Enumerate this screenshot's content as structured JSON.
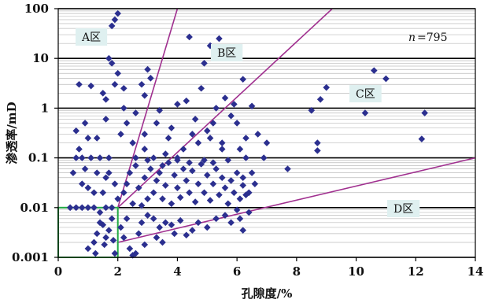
{
  "chart_data": {
    "type": "scatter",
    "title": "",
    "xlabel": "孔隙度/%",
    "ylabel": "渗透率/mD",
    "xlim": [
      0,
      14
    ],
    "ylim": [
      0.001,
      100
    ],
    "yscale": "log",
    "x_ticks": [
      "0",
      "2",
      "4",
      "6",
      "8",
      "10",
      "12",
      "14"
    ],
    "y_ticks": [
      "0.001",
      "0.01",
      "0.1",
      "1",
      "10",
      "100"
    ],
    "grid": "horizontal minor and major lines",
    "colors": {
      "marker": "#2b2f8f",
      "zone_lines": "#a0308f",
      "box": "#22aa44",
      "label_bg": "#dff0f0",
      "major_grid": "#000000",
      "minor_grid": "#bbbbbb"
    },
    "annotations": {
      "count": "=795",
      "count_symbol": "n",
      "zone_a": "A区",
      "zone_b": "B区",
      "zone_c": "C区",
      "zone_d": "D区"
    },
    "zone_lines": [
      {
        "x1": 2,
        "y1": 0.01,
        "x2": 4.0,
        "y2": 100
      },
      {
        "x1": 2,
        "y1": 0.01,
        "x2": 9.2,
        "y2": 100
      },
      {
        "x1": 2,
        "y1": 0.002,
        "x2": 14,
        "y2": 0.1
      }
    ],
    "cutoff_box": {
      "x": [
        0,
        2
      ],
      "y": [
        0.001,
        0.01
      ]
    },
    "points": [
      [
        2.0,
        80
      ],
      [
        1.9,
        60
      ],
      [
        1.8,
        45
      ],
      [
        1.7,
        10
      ],
      [
        1.8,
        8
      ],
      [
        1.9,
        3
      ],
      [
        2.0,
        5
      ],
      [
        1.6,
        1.5
      ],
      [
        2.2,
        1.0
      ],
      [
        2.2,
        2.5
      ],
      [
        2.8,
        3.0
      ],
      [
        3.0,
        6.0
      ],
      [
        3.1,
        4.0
      ],
      [
        2.9,
        1.8
      ],
      [
        3.3,
        0.5
      ],
      [
        4.4,
        27
      ],
      [
        5.4,
        25
      ],
      [
        5.1,
        18
      ],
      [
        4.9,
        8
      ],
      [
        6.2,
        3.8
      ],
      [
        4.3,
        1.4
      ],
      [
        4.0,
        1.2
      ],
      [
        0.7,
        3.0
      ],
      [
        1.1,
        2.8
      ],
      [
        1.5,
        2.0
      ],
      [
        1.6,
        0.6
      ],
      [
        0.6,
        0.35
      ],
      [
        0.9,
        0.5
      ],
      [
        1.0,
        0.25
      ],
      [
        1.3,
        0.25
      ],
      [
        0.7,
        0.15
      ],
      [
        0.6,
        0.1
      ],
      [
        0.8,
        0.1
      ],
      [
        1.1,
        0.1
      ],
      [
        1.4,
        0.1
      ],
      [
        1.7,
        0.1
      ],
      [
        2.5,
        0.2
      ],
      [
        2.9,
        0.15
      ],
      [
        2.6,
        0.1
      ],
      [
        3.2,
        0.1
      ],
      [
        3.6,
        0.12
      ],
      [
        4.0,
        0.1
      ],
      [
        4.2,
        0.15
      ],
      [
        4.5,
        0.3
      ],
      [
        5.0,
        0.35
      ],
      [
        5.2,
        0.5
      ],
      [
        5.8,
        0.7
      ],
      [
        6.0,
        0.5
      ],
      [
        6.5,
        1.1
      ],
      [
        5.6,
        1.6
      ],
      [
        4.8,
        2.5
      ],
      [
        6.7,
        0.3
      ],
      [
        6.3,
        0.25
      ],
      [
        6.1,
        0.15
      ],
      [
        5.5,
        0.15
      ],
      [
        7.0,
        0.2
      ],
      [
        7.7,
        0.06
      ],
      [
        8.5,
        0.9
      ],
      [
        8.8,
        1.5
      ],
      [
        9.0,
        2.6
      ],
      [
        10.5,
        2.5
      ],
      [
        10.6,
        5.7
      ],
      [
        11.0,
        3.9
      ],
      [
        10.3,
        0.8
      ],
      [
        12.3,
        0.8
      ],
      [
        12.2,
        0.24
      ],
      [
        8.7,
        0.2
      ],
      [
        8.7,
        0.14
      ],
      [
        6.9,
        0.1
      ],
      [
        6.3,
        0.1
      ],
      [
        0.4,
        0.01
      ],
      [
        0.6,
        0.01
      ],
      [
        0.8,
        0.01
      ],
      [
        1.0,
        0.01
      ],
      [
        1.2,
        0.01
      ],
      [
        1.4,
        0.008
      ],
      [
        1.6,
        0.01
      ],
      [
        1.8,
        0.01
      ],
      [
        1.0,
        0.025
      ],
      [
        1.3,
        0.05
      ],
      [
        0.9,
        0.06
      ],
      [
        1.2,
        0.02
      ],
      [
        0.8,
        0.03
      ],
      [
        1.6,
        0.04
      ],
      [
        1.9,
        0.03
      ],
      [
        1.7,
        0.05
      ],
      [
        1.5,
        0.02
      ],
      [
        0.5,
        0.05
      ],
      [
        1.0,
        0.0015
      ],
      [
        1.2,
        0.002
      ],
      [
        1.3,
        0.003
      ],
      [
        1.4,
        0.005
      ],
      [
        1.5,
        0.0045
      ],
      [
        1.6,
        0.0025
      ],
      [
        1.7,
        0.0035
      ],
      [
        1.8,
        0.006
      ],
      [
        1.9,
        0.0012
      ],
      [
        1.25,
        0.0012
      ],
      [
        1.55,
        0.0018
      ],
      [
        1.85,
        0.0022
      ],
      [
        2.1,
        0.004
      ],
      [
        2.2,
        0.0025
      ],
      [
        2.4,
        0.0015
      ],
      [
        2.5,
        0.0011
      ],
      [
        2.6,
        0.0012
      ],
      [
        2.7,
        0.003
      ],
      [
        2.3,
        0.006
      ],
      [
        2.8,
        0.005
      ],
      [
        3.0,
        0.007
      ],
      [
        3.2,
        0.006
      ],
      [
        3.4,
        0.004
      ],
      [
        3.6,
        0.005
      ],
      [
        3.8,
        0.0045
      ],
      [
        3.5,
        0.002
      ],
      [
        3.9,
        0.003
      ],
      [
        4.1,
        0.0055
      ],
      [
        4.3,
        0.0028
      ],
      [
        4.5,
        0.0035
      ],
      [
        4.7,
        0.005
      ],
      [
        5.0,
        0.004
      ],
      [
        5.3,
        0.006
      ],
      [
        5.6,
        0.007
      ],
      [
        6.1,
        0.006
      ],
      [
        6.2,
        0.0035
      ],
      [
        6.4,
        0.008
      ],
      [
        6.0,
        0.009
      ],
      [
        5.8,
        0.005
      ],
      [
        3.3,
        0.0025
      ],
      [
        2.9,
        0.0018
      ],
      [
        2.0,
        0.015
      ],
      [
        2.2,
        0.02
      ],
      [
        2.3,
        0.03
      ],
      [
        2.5,
        0.012
      ],
      [
        2.7,
        0.025
      ],
      [
        2.9,
        0.04
      ],
      [
        3.0,
        0.015
      ],
      [
        3.1,
        0.06
      ],
      [
        3.2,
        0.02
      ],
      [
        3.3,
        0.035
      ],
      [
        3.4,
        0.05
      ],
      [
        3.5,
        0.015
      ],
      [
        3.6,
        0.028
      ],
      [
        3.7,
        0.08
      ],
      [
        3.8,
        0.012
      ],
      [
        3.9,
        0.045
      ],
      [
        4.0,
        0.025
      ],
      [
        4.1,
        0.016
      ],
      [
        4.2,
        0.06
      ],
      [
        4.3,
        0.035
      ],
      [
        4.4,
        0.02
      ],
      [
        4.5,
        0.055
      ],
      [
        4.6,
        0.013
      ],
      [
        4.7,
        0.03
      ],
      [
        4.8,
        0.075
      ],
      [
        4.9,
        0.02
      ],
      [
        5.0,
        0.045
      ],
      [
        5.1,
        0.014
      ],
      [
        5.2,
        0.03
      ],
      [
        5.3,
        0.06
      ],
      [
        5.4,
        0.018
      ],
      [
        5.5,
        0.04
      ],
      [
        5.6,
        0.025
      ],
      [
        5.7,
        0.012
      ],
      [
        5.8,
        0.035
      ],
      [
        5.9,
        0.02
      ],
      [
        6.0,
        0.05
      ],
      [
        6.1,
        0.015
      ],
      [
        6.2,
        0.028
      ],
      [
        6.3,
        0.018
      ],
      [
        6.4,
        0.02
      ],
      [
        2.4,
        0.05
      ],
      [
        2.6,
        0.07
      ],
      [
        2.8,
        0.011
      ],
      [
        3.0,
        0.09
      ],
      [
        3.5,
        0.07
      ],
      [
        4.0,
        0.09
      ],
      [
        4.4,
        0.08
      ],
      [
        4.9,
        0.09
      ],
      [
        5.2,
        0.08
      ],
      [
        5.7,
        0.09
      ],
      [
        2.1,
        0.3
      ],
      [
        2.3,
        0.5
      ],
      [
        2.6,
        0.8
      ],
      [
        3.4,
        0.9
      ],
      [
        3.8,
        0.4
      ],
      [
        4.6,
        0.6
      ],
      [
        5.3,
        1.0
      ],
      [
        5.9,
        1.2
      ],
      [
        2.9,
        0.3
      ],
      [
        3.7,
        0.25
      ],
      [
        4.7,
        0.2
      ],
      [
        5.1,
        0.25
      ],
      [
        5.5,
        0.2
      ],
      [
        6.5,
        0.05
      ],
      [
        6.6,
        0.03
      ],
      [
        6.2,
        0.04
      ]
    ]
  }
}
